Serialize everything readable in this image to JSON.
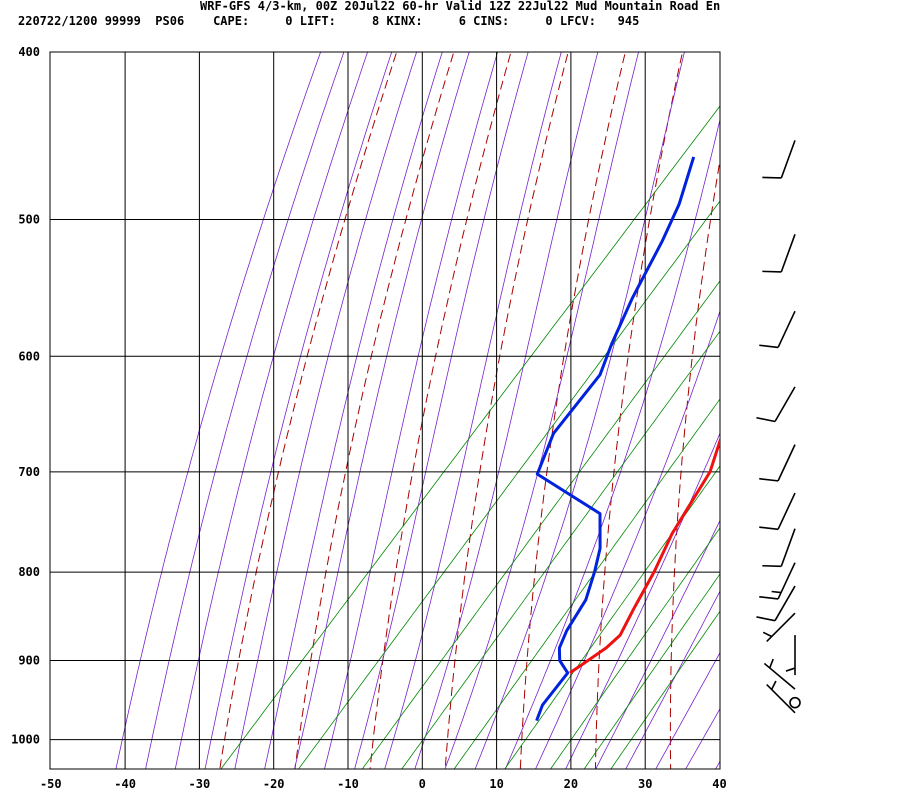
{
  "header": {
    "line1": "WRF-GFS 4/3-km, 00Z 20Jul22 60-hr Valid 12Z 22Jul22 Mud Mountain Road En",
    "line2": "220722/1200 99999  PS06    CAPE:     0 LIFT:     8 KINX:     6 CINS:     0 LFCV:   945"
  },
  "chart_data": {
    "type": "line",
    "title": "WRF-GFS 4/3-km, 00Z 20Jul22 60-hr Valid 12Z 22Jul22 Mud Mountain Road En",
    "subtitle": "220722/1200 99999  PS06    CAPE:     0 LIFT:     8 KINX:     6 CINS:     0 LFCV:   945",
    "xlabel": "",
    "ylabel": "",
    "xlim": [
      -50,
      40
    ],
    "ylim": [
      1040,
      400
    ],
    "y_scale": "log",
    "x_ticks": [
      -50,
      -40,
      -30,
      -20,
      -10,
      0,
      10,
      20,
      30,
      40
    ],
    "x_tick_labels": [
      "-50",
      "-40",
      "-30",
      "-20",
      "-10",
      "0",
      "10",
      "20",
      "30",
      "40"
    ],
    "y_ticks": [
      400,
      500,
      600,
      700,
      800,
      900,
      1000
    ],
    "y_tick_labels": [
      "400",
      "500",
      "600",
      "700",
      "800",
      "900",
      "1000"
    ],
    "grid": true,
    "colors": {
      "temperature": "#ee1111",
      "dewpoint": "#0022dd",
      "dry_adiabats": "#aa0000",
      "moist_adiabats": "#7722cc",
      "mixing_ratio": "#008800",
      "grid": "#000000"
    },
    "series": [
      {
        "color": "red",
        "points": [
          {
            "p": 460,
            "t": -20.0
          },
          {
            "p": 500,
            "t": -14.5
          },
          {
            "p": 560,
            "t": -7.0
          },
          {
            "p": 600,
            "t": -2.5
          },
          {
            "p": 650,
            "t": 0.5
          },
          {
            "p": 700,
            "t": 4.5
          },
          {
            "p": 760,
            "t": 6.5
          },
          {
            "p": 800,
            "t": 8.5
          },
          {
            "p": 840,
            "t": 10.0
          },
          {
            "p": 870,
            "t": 11.2
          },
          {
            "p": 885,
            "t": 10.8
          },
          {
            "p": 900,
            "t": 9.8
          },
          {
            "p": 915,
            "t": 8.8
          }
        ]
      },
      {
        "color": "blue",
        "points": [
          {
            "p": 460,
            "t": -34.0
          },
          {
            "p": 490,
            "t": -30.5
          },
          {
            "p": 515,
            "t": -28.5
          },
          {
            "p": 555,
            "t": -26.0
          },
          {
            "p": 590,
            "t": -23.5
          },
          {
            "p": 615,
            "t": -21.5
          },
          {
            "p": 665,
            "t": -21.0
          },
          {
            "p": 702,
            "t": -18.5
          },
          {
            "p": 740,
            "t": -5.5
          },
          {
            "p": 775,
            "t": -1.5
          },
          {
            "p": 800,
            "t": 0.5
          },
          {
            "p": 830,
            "t": 2.5
          },
          {
            "p": 865,
            "t": 3.5
          },
          {
            "p": 885,
            "t": 4.5
          },
          {
            "p": 900,
            "t": 6.0
          },
          {
            "p": 915,
            "t": 8.5
          },
          {
            "p": 955,
            "t": 8.8
          },
          {
            "p": 975,
            "t": 9.8
          }
        ]
      }
    ],
    "wind_barbs": [
      {
        "p": 450,
        "dir": 200,
        "kt": 10
      },
      {
        "p": 510,
        "dir": 200,
        "kt": 10
      },
      {
        "p": 565,
        "dir": 205,
        "kt": 10
      },
      {
        "p": 625,
        "dir": 210,
        "kt": 10
      },
      {
        "p": 675,
        "dir": 205,
        "kt": 10
      },
      {
        "p": 720,
        "dir": 205,
        "kt": 10
      },
      {
        "p": 755,
        "dir": 200,
        "kt": 10
      },
      {
        "p": 790,
        "dir": 205,
        "kt": 15
      },
      {
        "p": 815,
        "dir": 210,
        "kt": 10
      },
      {
        "p": 845,
        "dir": 225,
        "kt": 5
      },
      {
        "p": 870,
        "dir": 180,
        "kt": 5
      },
      {
        "p": 935,
        "dir": 310,
        "kt": 5
      },
      {
        "p": 952,
        "dir": 0,
        "kt": 0
      },
      {
        "p": 965,
        "dir": 315,
        "kt": 5
      }
    ]
  }
}
